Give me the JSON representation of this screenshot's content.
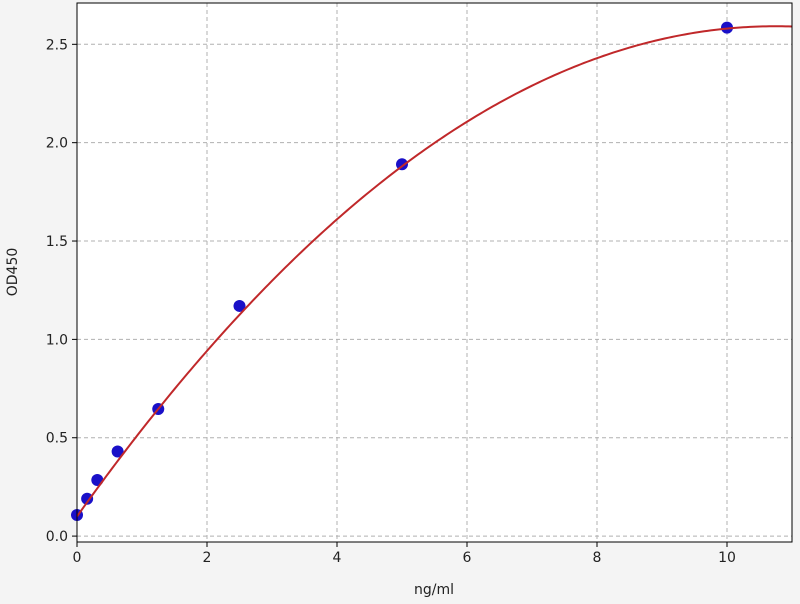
{
  "chart_data": {
    "type": "scatter",
    "title": "",
    "xlabel": "ng/ml",
    "ylabel": "OD450",
    "xlim": [
      0,
      11
    ],
    "ylim": [
      -0.03,
      2.71
    ],
    "xticks": [
      "0",
      "2",
      "4",
      "6",
      "8",
      "10"
    ],
    "yticks": [
      "0.0",
      "0.5",
      "1.0",
      "1.5",
      "2.0",
      "2.5"
    ],
    "grid": true,
    "points": [
      {
        "x": 0,
        "y": 0.107
      },
      {
        "x": 0.156,
        "y": 0.19
      },
      {
        "x": 0.3125,
        "y": 0.285
      },
      {
        "x": 0.625,
        "y": 0.43
      },
      {
        "x": 1.25,
        "y": 0.646
      },
      {
        "x": 2.5,
        "y": 1.17
      },
      {
        "x": 5,
        "y": 1.89
      },
      {
        "x": 10,
        "y": 2.585
      }
    ],
    "fit_curve": {
      "type": "polynomial",
      "coefficients": [
        0.1,
        0.464,
        -0.0216
      ]
    },
    "colors": {
      "points": "#1a10c8",
      "curve": "#c0282a",
      "grid": "#b0b0b0"
    }
  }
}
